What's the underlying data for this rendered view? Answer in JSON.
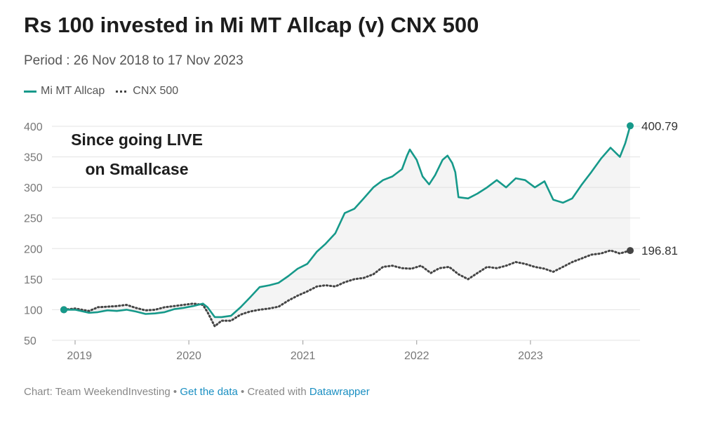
{
  "chart_data": {
    "type": "line",
    "title": "Rs 100 invested in Mi MT Allcap (v) CNX 500",
    "subtitle": "Period : 26 Nov 2018 to 17 Nov 2023",
    "x_range": [
      "2018-11-26",
      "2023-11-17"
    ],
    "x_ticks": [
      "2019",
      "2020",
      "2021",
      "2022",
      "2023"
    ],
    "y_ticks": [
      50,
      100,
      150,
      200,
      250,
      300,
      350,
      400
    ],
    "ylim": [
      50,
      400
    ],
    "grid": true,
    "legend_position": "top-left",
    "annotation": [
      "Since going LIVE",
      "on Smallcase"
    ],
    "series": [
      {
        "name": "Mi MT Allcap",
        "color": "#16998a",
        "style": "solid",
        "end_label": "400.79",
        "points": [
          [
            "2018-11-26",
            100
          ],
          [
            "2019-01-01",
            100
          ],
          [
            "2019-02-15",
            95
          ],
          [
            "2019-03-15",
            96
          ],
          [
            "2019-04-15",
            99
          ],
          [
            "2019-05-15",
            98
          ],
          [
            "2019-06-15",
            100
          ],
          [
            "2019-07-15",
            97
          ],
          [
            "2019-08-15",
            93
          ],
          [
            "2019-09-15",
            94
          ],
          [
            "2019-10-15",
            96
          ],
          [
            "2019-11-15",
            101
          ],
          [
            "2019-12-15",
            103
          ],
          [
            "2020-01-15",
            106
          ],
          [
            "2020-02-15",
            110
          ],
          [
            "2020-03-01",
            104
          ],
          [
            "2020-03-24",
            88
          ],
          [
            "2020-04-15",
            88
          ],
          [
            "2020-05-15",
            90
          ],
          [
            "2020-06-15",
            104
          ],
          [
            "2020-07-15",
            120
          ],
          [
            "2020-08-15",
            137
          ],
          [
            "2020-09-15",
            140
          ],
          [
            "2020-10-15",
            144
          ],
          [
            "2020-11-15",
            155
          ],
          [
            "2020-12-15",
            167
          ],
          [
            "2021-01-15",
            175
          ],
          [
            "2021-02-15",
            195
          ],
          [
            "2021-03-15",
            208
          ],
          [
            "2021-04-15",
            225
          ],
          [
            "2021-05-15",
            258
          ],
          [
            "2021-06-15",
            265
          ],
          [
            "2021-07-15",
            282
          ],
          [
            "2021-08-15",
            300
          ],
          [
            "2021-09-15",
            312
          ],
          [
            "2021-10-15",
            318
          ],
          [
            "2021-11-15",
            330
          ],
          [
            "2021-12-01",
            352
          ],
          [
            "2021-12-10",
            362
          ],
          [
            "2022-01-01",
            345
          ],
          [
            "2022-01-20",
            318
          ],
          [
            "2022-02-10",
            305
          ],
          [
            "2022-03-01",
            320
          ],
          [
            "2022-03-25",
            345
          ],
          [
            "2022-04-10",
            352
          ],
          [
            "2022-04-25",
            340
          ],
          [
            "2022-05-05",
            325
          ],
          [
            "2022-05-15",
            284
          ],
          [
            "2022-06-15",
            282
          ],
          [
            "2022-07-15",
            290
          ],
          [
            "2022-08-15",
            300
          ],
          [
            "2022-09-15",
            312
          ],
          [
            "2022-10-15",
            300
          ],
          [
            "2022-11-15",
            315
          ],
          [
            "2022-12-15",
            312
          ],
          [
            "2023-01-15",
            300
          ],
          [
            "2023-02-15",
            310
          ],
          [
            "2023-03-15",
            280
          ],
          [
            "2023-04-15",
            275
          ],
          [
            "2023-05-15",
            282
          ],
          [
            "2023-06-15",
            305
          ],
          [
            "2023-07-15",
            325
          ],
          [
            "2023-08-15",
            347
          ],
          [
            "2023-09-15",
            365
          ],
          [
            "2023-10-15",
            350
          ],
          [
            "2023-11-01",
            372
          ],
          [
            "2023-11-17",
            400.79
          ]
        ]
      },
      {
        "name": "CNX 500",
        "color": "#444444",
        "style": "dotted",
        "end_label": "196.81",
        "points": [
          [
            "2018-11-26",
            100
          ],
          [
            "2019-01-01",
            102
          ],
          [
            "2019-02-15",
            98
          ],
          [
            "2019-03-15",
            104
          ],
          [
            "2019-04-15",
            105
          ],
          [
            "2019-05-15",
            106
          ],
          [
            "2019-06-15",
            108
          ],
          [
            "2019-07-15",
            103
          ],
          [
            "2019-08-15",
            99
          ],
          [
            "2019-09-15",
            100
          ],
          [
            "2019-10-15",
            104
          ],
          [
            "2019-11-15",
            106
          ],
          [
            "2019-12-15",
            108
          ],
          [
            "2020-01-15",
            110
          ],
          [
            "2020-02-15",
            108
          ],
          [
            "2020-03-01",
            96
          ],
          [
            "2020-03-24",
            73
          ],
          [
            "2020-04-15",
            82
          ],
          [
            "2020-05-15",
            82
          ],
          [
            "2020-06-15",
            92
          ],
          [
            "2020-07-15",
            97
          ],
          [
            "2020-08-15",
            100
          ],
          [
            "2020-09-15",
            102
          ],
          [
            "2020-10-15",
            105
          ],
          [
            "2020-11-15",
            115
          ],
          [
            "2020-12-15",
            123
          ],
          [
            "2021-01-15",
            130
          ],
          [
            "2021-02-15",
            138
          ],
          [
            "2021-03-15",
            140
          ],
          [
            "2021-04-15",
            138
          ],
          [
            "2021-05-15",
            145
          ],
          [
            "2021-06-15",
            150
          ],
          [
            "2021-07-15",
            152
          ],
          [
            "2021-08-15",
            158
          ],
          [
            "2021-09-15",
            170
          ],
          [
            "2021-10-15",
            172
          ],
          [
            "2021-11-15",
            168
          ],
          [
            "2021-12-15",
            167
          ],
          [
            "2022-01-15",
            172
          ],
          [
            "2022-02-15",
            160
          ],
          [
            "2022-03-15",
            168
          ],
          [
            "2022-04-15",
            170
          ],
          [
            "2022-05-15",
            158
          ],
          [
            "2022-06-15",
            150
          ],
          [
            "2022-07-15",
            160
          ],
          [
            "2022-08-15",
            170
          ],
          [
            "2022-09-15",
            168
          ],
          [
            "2022-10-15",
            172
          ],
          [
            "2022-11-15",
            178
          ],
          [
            "2022-12-15",
            175
          ],
          [
            "2023-01-15",
            170
          ],
          [
            "2023-02-15",
            167
          ],
          [
            "2023-03-15",
            162
          ],
          [
            "2023-04-15",
            170
          ],
          [
            "2023-05-15",
            178
          ],
          [
            "2023-06-15",
            184
          ],
          [
            "2023-07-15",
            190
          ],
          [
            "2023-08-15",
            192
          ],
          [
            "2023-09-15",
            197
          ],
          [
            "2023-10-15",
            192
          ],
          [
            "2023-11-17",
            196.81
          ]
        ]
      }
    ]
  },
  "footer": {
    "credit": "Chart: Team WeekendInvesting",
    "sep1": " • ",
    "get_data": "Get the data",
    "sep2": " • Created with ",
    "datawrapper": "Datawrapper"
  }
}
